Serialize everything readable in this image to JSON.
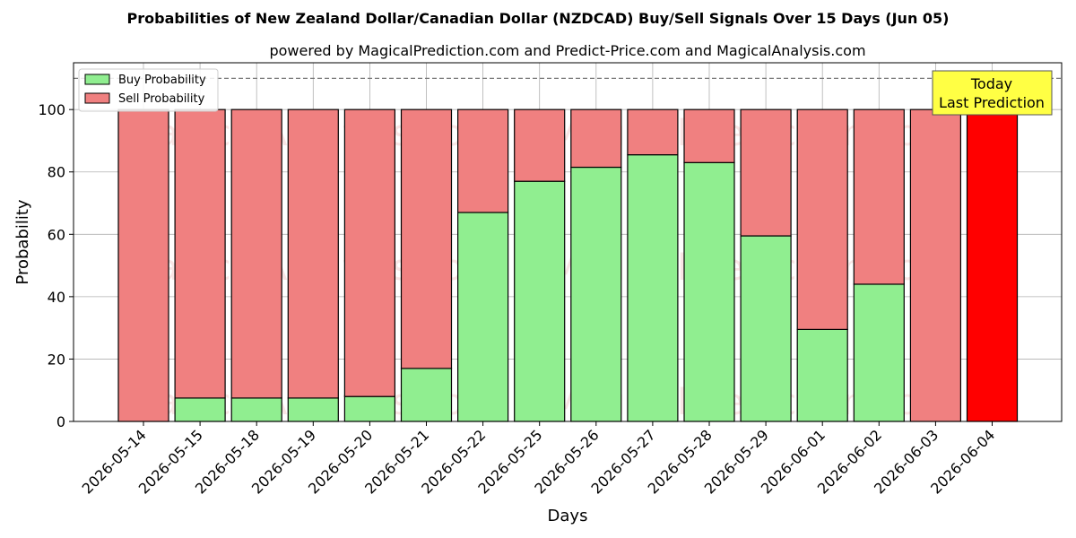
{
  "chart_data": {
    "type": "bar",
    "stacked": true,
    "title": "Probabilities of New Zealand Dollar/Canadian Dollar (NZDCAD) Buy/Sell Signals Over 15 Days (Jun 05)",
    "subtitle": "powered by MagicalPrediction.com and Predict-Price.com and MagicalAnalysis.com",
    "xlabel": "Days",
    "ylabel": "Probability",
    "ylim": [
      0,
      115
    ],
    "yticks": [
      0,
      20,
      40,
      60,
      80,
      100
    ],
    "reference_line": 110,
    "grid": true,
    "legend_position": "top-left",
    "categories": [
      "2026-05-14",
      "2026-05-15",
      "2026-05-18",
      "2026-05-19",
      "2026-05-20",
      "2026-05-21",
      "2026-05-22",
      "2026-05-25",
      "2026-05-26",
      "2026-05-27",
      "2026-05-28",
      "2026-05-29",
      "2026-06-01",
      "2026-06-02",
      "2026-06-03",
      "2026-06-04"
    ],
    "series": [
      {
        "name": "Buy Probability",
        "color": "#90ee90",
        "values": [
          0,
          7.5,
          7.5,
          7.5,
          8,
          17,
          67,
          77,
          81.5,
          85.5,
          83,
          59.5,
          29.5,
          44,
          0,
          0
        ]
      },
      {
        "name": "Sell Probability",
        "color": "#f08080",
        "values": [
          100,
          92.5,
          92.5,
          92.5,
          92,
          83,
          33,
          23,
          18.5,
          14.5,
          17,
          40.5,
          70.5,
          56,
          100,
          100
        ]
      }
    ],
    "highlight": {
      "index": 15,
      "color": "#ff0000"
    },
    "annotation": {
      "lines": [
        "Today",
        "Last Prediction"
      ],
      "background": "#ffff44"
    },
    "watermarks": [
      "MagicalAnalysis.com",
      "MagicalPrediction.com"
    ]
  }
}
